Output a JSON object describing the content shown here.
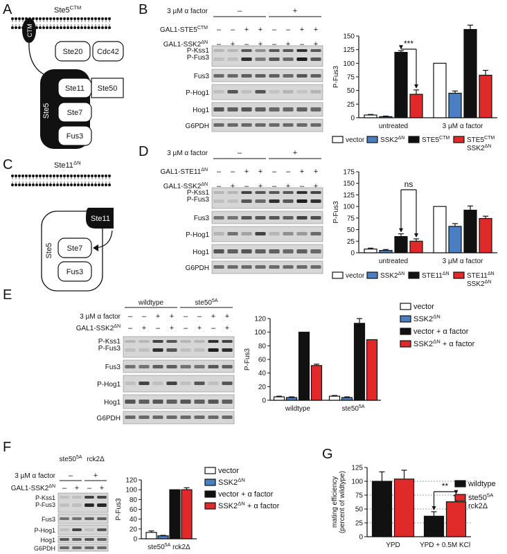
{
  "panels": {
    "A": {
      "letter": "A",
      "title_base": "Ste5",
      "title_sup": "CTM",
      "ctm_label": "CTM",
      "scaffold_label": "Ste5",
      "boxes": [
        "Ste20",
        "Cdc42",
        "Ste11",
        "Ste50",
        "Ste7",
        "Fus3"
      ]
    },
    "B": {
      "letter": "B",
      "treatment_label": "3 µM α factor",
      "treatment_signs": [
        "–",
        "+"
      ],
      "row_labels": [
        {
          "base": "GAL1-STE5",
          "sup": "CTM"
        },
        {
          "base": "GAL1-SSK2",
          "sup": "ΔN"
        }
      ],
      "row_signs": [
        [
          "–",
          "–",
          "+",
          "+",
          "–",
          "–",
          "+",
          "+"
        ],
        [
          "–",
          "+",
          "–",
          "+",
          "–",
          "+",
          "–",
          "+"
        ]
      ],
      "blot_labels": [
        [
          "P-Kss1",
          "P-Fus3"
        ],
        [
          "Fus3"
        ],
        [
          "P-Hog1"
        ],
        [
          "Hog1"
        ],
        [
          "G6PDH"
        ]
      ]
    },
    "C": {
      "letter": "C",
      "title_base": "Ste11",
      "title_sup": "ΔN",
      "scaffold_label": "Ste5",
      "boxes": [
        "Ste11",
        "Ste7",
        "Fus3"
      ]
    },
    "D": {
      "letter": "D",
      "treatment_label": "3 µM α factor",
      "treatment_signs": [
        "–",
        "+"
      ],
      "row_labels": [
        {
          "base": "GAL1-STE11",
          "sup": "ΔN"
        },
        {
          "base": "GAL1-SSK2",
          "sup": "ΔN"
        }
      ],
      "row_signs": [
        [
          "–",
          "–",
          "+",
          "+",
          "–",
          "–",
          "+",
          "+"
        ],
        [
          "–",
          "+",
          "–",
          "+",
          "–",
          "+",
          "–",
          "+"
        ]
      ],
      "blot_labels": [
        [
          "P-Kss1",
          "P-Fus3"
        ],
        [
          "Fus3"
        ],
        [
          "P-Hog1"
        ],
        [
          "Hog1"
        ],
        [
          "G6PDH"
        ]
      ]
    },
    "E": {
      "letter": "E",
      "group_labels": [
        {
          "base": "wildtype",
          "sup": ""
        },
        {
          "base": "ste50",
          "sup": "5A"
        }
      ],
      "treatment_label": "3 µM α factor",
      "row_label": {
        "base": "GAL1-SSK2",
        "sup": "ΔN"
      },
      "treatment_signs": [
        "–",
        "–",
        "+",
        "+",
        "–",
        "–",
        "+",
        "+"
      ],
      "ssk2_signs": [
        "–",
        "+",
        "–",
        "+",
        "–",
        "+",
        "–",
        "+"
      ],
      "blot_labels": [
        [
          "P-Kss1",
          "P-Fus3"
        ],
        [
          "Fus3"
        ],
        [
          "P-Hog1"
        ],
        [
          "Hog1"
        ],
        [
          "G6PDH"
        ]
      ]
    },
    "F": {
      "letter": "F",
      "group_labels": [
        {
          "base": "ste50",
          "sup": "5A"
        },
        {
          "base": "rck2Δ",
          "sup": ""
        }
      ],
      "treatment_label": "3 µM α factor",
      "row_label": {
        "base": "GAL1-SSK2",
        "sup": "ΔN"
      },
      "treatment_signs": [
        "–",
        "+"
      ],
      "ssk2_signs": [
        "–",
        "+",
        "–",
        "+"
      ],
      "blot_labels": [
        [
          "P-Kss1",
          "P-Fus3"
        ],
        [
          "Fus3"
        ],
        [
          "P-Hog1"
        ],
        [
          "Hog1"
        ],
        [
          "G6PDH"
        ]
      ]
    },
    "G": {
      "letter": "G"
    }
  },
  "colors": {
    "vector": "#ffffff",
    "ssk2": "#4a7fc1",
    "third": "#111111",
    "fourth": "#e02a2a"
  },
  "chart_data": [
    {
      "panel": "B",
      "type": "bar",
      "ylabel": "P-Fus3",
      "ylim": [
        0,
        150
      ],
      "yticks": [
        0,
        25,
        50,
        75,
        100,
        125,
        150
      ],
      "categories": [
        "untreated",
        "3 µM α factor"
      ],
      "series": [
        {
          "name": "vector",
          "values": [
            5,
            100
          ],
          "errors": [
            1,
            0
          ]
        },
        {
          "name": "SSK2ΔN",
          "values": [
            2,
            45
          ],
          "errors": [
            1,
            4
          ]
        },
        {
          "name": "STE5CTM",
          "values": [
            120,
            162
          ],
          "errors": [
            3,
            8
          ]
        },
        {
          "name": "STE5CTM SSK2ΔN",
          "values": [
            43,
            78
          ],
          "errors": [
            8,
            9
          ]
        }
      ],
      "legend": [
        {
          "base": "vector",
          "sup": ""
        },
        {
          "base": "SSK2",
          "sup": "ΔN"
        },
        {
          "base": "STE5",
          "sup": "CTM"
        },
        {
          "lines": [
            {
              "base": "STE5",
              "sup": "CTM"
            },
            {
              "base": "SSK2",
              "sup": "ΔN"
            }
          ]
        }
      ],
      "annotation": "***"
    },
    {
      "panel": "D",
      "type": "bar",
      "ylabel": "P-Fus3",
      "ylim": [
        0,
        175
      ],
      "yticks": [
        0,
        25,
        50,
        75,
        100,
        125,
        150,
        175
      ],
      "categories": [
        "untreated",
        "3 µM α factor"
      ],
      "series": [
        {
          "name": "vector",
          "values": [
            8,
            100
          ],
          "errors": [
            2,
            0
          ]
        },
        {
          "name": "SSK2ΔN",
          "values": [
            5,
            57
          ],
          "errors": [
            2,
            6
          ]
        },
        {
          "name": "STE11ΔN",
          "values": [
            35,
            92
          ],
          "errors": [
            6,
            9
          ]
        },
        {
          "name": "STE11ΔN SSK2ΔN",
          "values": [
            25,
            74
          ],
          "errors": [
            5,
            5
          ]
        }
      ],
      "legend": [
        {
          "base": "vector",
          "sup": ""
        },
        {
          "base": "SSK2",
          "sup": "ΔN"
        },
        {
          "base": "STE11",
          "sup": "ΔN"
        },
        {
          "lines": [
            {
              "base": "STE11",
              "sup": "ΔN"
            },
            {
              "base": "SSK2",
              "sup": "ΔN"
            }
          ]
        }
      ],
      "annotation": "ns"
    },
    {
      "panel": "E",
      "type": "bar",
      "ylabel": "P-Fus3",
      "ylim": [
        0,
        120
      ],
      "yticks": [
        0,
        20,
        40,
        60,
        80,
        100,
        120
      ],
      "categories": [
        {
          "base": "wildtype",
          "sup": ""
        },
        {
          "base": "ste50",
          "sup": "5A"
        }
      ],
      "series": [
        {
          "name": "vector",
          "values": [
            5,
            6
          ],
          "errors": [
            1,
            1
          ]
        },
        {
          "name": "SSK2ΔN",
          "values": [
            4,
            4
          ],
          "errors": [
            1,
            1
          ]
        },
        {
          "name": "vector + α factor",
          "values": [
            100,
            113
          ],
          "errors": [
            0,
            7
          ]
        },
        {
          "name": "SSK2ΔN + α factor",
          "values": [
            51,
            89
          ],
          "errors": [
            2,
            0
          ]
        }
      ],
      "legend": [
        {
          "base": "vector",
          "sup": ""
        },
        {
          "base": "SSK2",
          "sup": "ΔN"
        },
        {
          "base": "vector + α factor",
          "sup": ""
        },
        {
          "base": "SSK2",
          "sup": "ΔN",
          "after": " + α factor"
        }
      ]
    },
    {
      "panel": "F",
      "type": "bar",
      "ylabel": "P-Fus3",
      "ylim": [
        0,
        120
      ],
      "yticks": [
        0,
        20,
        40,
        60,
        80,
        100,
        120
      ],
      "categories": [
        {
          "base": "ste50",
          "sup": "5A",
          "after": " rck2Δ"
        }
      ],
      "series": [
        {
          "name": "vector",
          "values": [
            13
          ],
          "errors": [
            3
          ]
        },
        {
          "name": "SSK2ΔN",
          "values": [
            6
          ],
          "errors": [
            1
          ]
        },
        {
          "name": "vector + α factor",
          "values": [
            100
          ],
          "errors": [
            0
          ]
        },
        {
          "name": "SSK2ΔN + α factor",
          "values": [
            100
          ],
          "errors": [
            4
          ]
        }
      ],
      "legend": [
        {
          "base": "vector",
          "sup": ""
        },
        {
          "base": "SSK2",
          "sup": "ΔN"
        },
        {
          "base": "vector + α factor",
          "sup": ""
        },
        {
          "base": "SSK2",
          "sup": "ΔN",
          "after": " + α factor"
        }
      ]
    },
    {
      "panel": "G",
      "type": "bar",
      "ylabel_lines": [
        "mating efficiency",
        "(percent of wildtype)"
      ],
      "ylim": [
        0,
        125
      ],
      "yticks": [
        0,
        25,
        50,
        75,
        100,
        125
      ],
      "grid": "dotted at 25, 50, 75, 100",
      "categories": [
        "YPD",
        "YPD + 0.5M KCl"
      ],
      "series": [
        {
          "name": "wildtype",
          "values": [
            100,
            37
          ],
          "errors": [
            17,
            8
          ]
        },
        {
          "name": "ste505A rck2Δ",
          "values": [
            104,
            63
          ],
          "errors": [
            16,
            11
          ]
        }
      ],
      "legend": [
        {
          "base": "wildtype",
          "sup": ""
        },
        {
          "lines": [
            {
              "base": "ste50",
              "sup": "5A"
            },
            {
              "base": "rck2Δ",
              "sup": ""
            }
          ]
        }
      ],
      "annotation": "**"
    }
  ]
}
